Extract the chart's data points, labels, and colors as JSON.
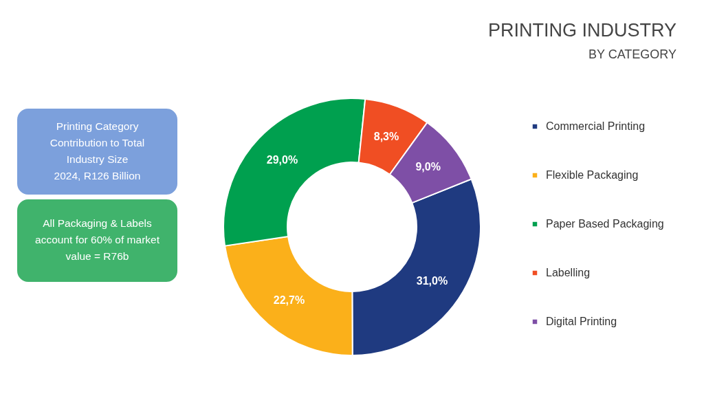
{
  "chart_data": {
    "type": "donut",
    "title": "PRINTING INDUSTRY",
    "subtitle": "BY CATEGORY",
    "categories": [
      "Commercial Printing",
      "Flexible Packaging",
      "Paper Based Packaging",
      "Labelling",
      "Digital Printing"
    ],
    "values": [
      31.0,
      22.7,
      29.0,
      8.3,
      9.0
    ],
    "colors": [
      "#1f3a80",
      "#fbb01a",
      "#00a04f",
      "#f04e23",
      "#7e4fa6"
    ],
    "value_labels": [
      "31,0%",
      "22,7%",
      "29,0%",
      "8,3%",
      "9,0%"
    ],
    "legend": "right",
    "annotations": [
      "Printing Category\nContribution to Total\nIndustry Size\n2024, R126 Billion",
      "All Packaging & Labels\naccount for 60% of market\nvalue = R76b"
    ]
  }
}
